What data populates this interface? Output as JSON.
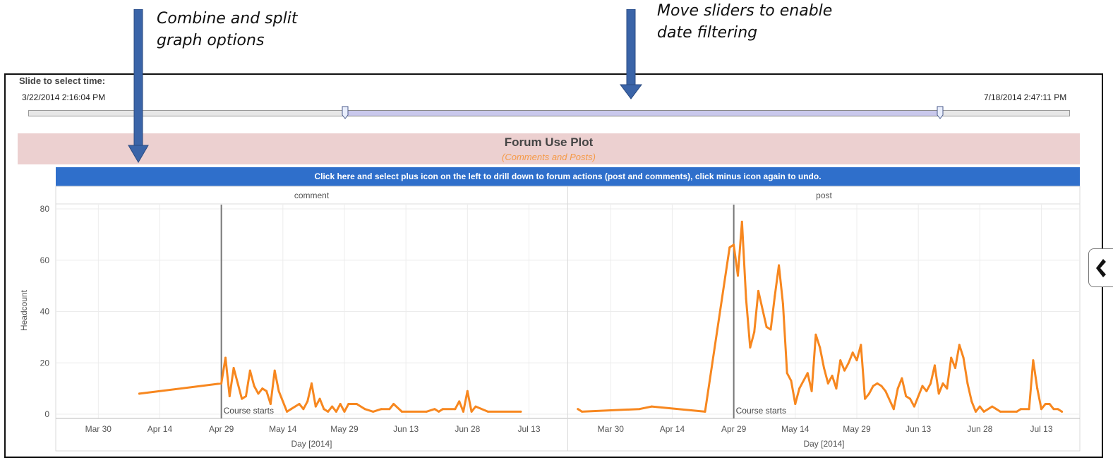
{
  "callouts": {
    "left": [
      "Combine and split",
      "graph options"
    ],
    "right": [
      "Move sliders to enable",
      "date filtering"
    ]
  },
  "slider": {
    "label": "Slide to select time:",
    "start_date": "3/22/2014 2:16:04 PM",
    "end_date": "7/18/2014 2:47:11 PM",
    "selected_range_fraction": [
      0.304,
      0.875
    ],
    "colors": {
      "track": "#e7e7e7",
      "selected": "#c9c8ec"
    }
  },
  "plot_header": {
    "title": "Forum Use Plot",
    "subtitle": "(Comments and Posts)"
  },
  "drill_bar": {
    "text": "Click here and select plus icon on the left  to drill down to forum actions (post and comments), click minus icon again to undo."
  },
  "colors": {
    "line": "#f7871f",
    "header_band": "#ecd0d0",
    "drill_bar": "#2f6fcb",
    "callout_arrow": "#3a64a8"
  },
  "chart_data": {
    "type": "line",
    "ylabel": "Headcount",
    "xlabel": "Day [2014]",
    "ylim": [
      0,
      80
    ],
    "yticks": [
      0,
      20,
      40,
      60,
      80
    ],
    "x_range": [
      "2014-03-21",
      "2014-07-21"
    ],
    "xticks": [
      {
        "date": "2014-03-30",
        "label": "Mar 30"
      },
      {
        "date": "2014-04-14",
        "label": "Apr 14"
      },
      {
        "date": "2014-04-29",
        "label": "Apr 29"
      },
      {
        "date": "2014-05-14",
        "label": "May 14"
      },
      {
        "date": "2014-05-29",
        "label": "May 29"
      },
      {
        "date": "2014-06-13",
        "label": "Jun 13"
      },
      {
        "date": "2014-06-28",
        "label": "Jun 28"
      },
      {
        "date": "2014-07-13",
        "label": "Jul 13"
      }
    ],
    "grid": true,
    "reference_line": {
      "date": "2014-04-29",
      "label": "Course starts"
    },
    "panels": [
      {
        "name": "comment",
        "points": [
          [
            "2014-04-09",
            8
          ],
          [
            "2014-04-29",
            12
          ],
          [
            "2014-04-30",
            22
          ],
          [
            "2014-05-01",
            7
          ],
          [
            "2014-05-02",
            18
          ],
          [
            "2014-05-03",
            12
          ],
          [
            "2014-05-04",
            6
          ],
          [
            "2014-05-05",
            7
          ],
          [
            "2014-05-06",
            17
          ],
          [
            "2014-05-07",
            11
          ],
          [
            "2014-05-08",
            8
          ],
          [
            "2014-05-09",
            10
          ],
          [
            "2014-05-10",
            9
          ],
          [
            "2014-05-11",
            4
          ],
          [
            "2014-05-12",
            17
          ],
          [
            "2014-05-13",
            9
          ],
          [
            "2014-05-14",
            5
          ],
          [
            "2014-05-15",
            1
          ],
          [
            "2014-05-16",
            2
          ],
          [
            "2014-05-18",
            4
          ],
          [
            "2014-05-19",
            2
          ],
          [
            "2014-05-20",
            5
          ],
          [
            "2014-05-21",
            12
          ],
          [
            "2014-05-22",
            3
          ],
          [
            "2014-05-23",
            6
          ],
          [
            "2014-05-24",
            2
          ],
          [
            "2014-05-25",
            1
          ],
          [
            "2014-05-26",
            3
          ],
          [
            "2014-05-27",
            1
          ],
          [
            "2014-05-28",
            4
          ],
          [
            "2014-05-29",
            1
          ],
          [
            "2014-05-30",
            4
          ],
          [
            "2014-06-01",
            4
          ],
          [
            "2014-06-03",
            2
          ],
          [
            "2014-06-05",
            1
          ],
          [
            "2014-06-07",
            2
          ],
          [
            "2014-06-09",
            2
          ],
          [
            "2014-06-10",
            4
          ],
          [
            "2014-06-12",
            1
          ],
          [
            "2014-06-18",
            1
          ],
          [
            "2014-06-20",
            2
          ],
          [
            "2014-06-21",
            1
          ],
          [
            "2014-06-22",
            2
          ],
          [
            "2014-06-25",
            2
          ],
          [
            "2014-06-26",
            5
          ],
          [
            "2014-06-27",
            1
          ],
          [
            "2014-06-28",
            9
          ],
          [
            "2014-06-29",
            1
          ],
          [
            "2014-06-30",
            3
          ],
          [
            "2014-07-03",
            1
          ],
          [
            "2014-07-11",
            1
          ]
        ]
      },
      {
        "name": "post",
        "points": [
          [
            "2014-03-22",
            2
          ],
          [
            "2014-03-23",
            1
          ],
          [
            "2014-04-06",
            2
          ],
          [
            "2014-04-09",
            3
          ],
          [
            "2014-04-22",
            1
          ],
          [
            "2014-04-28",
            65
          ],
          [
            "2014-04-29",
            66
          ],
          [
            "2014-04-30",
            54
          ],
          [
            "2014-05-01",
            75
          ],
          [
            "2014-05-02",
            45
          ],
          [
            "2014-05-03",
            26
          ],
          [
            "2014-05-04",
            32
          ],
          [
            "2014-05-05",
            48
          ],
          [
            "2014-05-07",
            34
          ],
          [
            "2014-05-08",
            33
          ],
          [
            "2014-05-09",
            46
          ],
          [
            "2014-05-10",
            58
          ],
          [
            "2014-05-11",
            43
          ],
          [
            "2014-05-12",
            16
          ],
          [
            "2014-05-13",
            13
          ],
          [
            "2014-05-14",
            4
          ],
          [
            "2014-05-15",
            10
          ],
          [
            "2014-05-17",
            16
          ],
          [
            "2014-05-18",
            9
          ],
          [
            "2014-05-19",
            31
          ],
          [
            "2014-05-20",
            26
          ],
          [
            "2014-05-21",
            18
          ],
          [
            "2014-05-22",
            12
          ],
          [
            "2014-05-23",
            15
          ],
          [
            "2014-05-24",
            10
          ],
          [
            "2014-05-25",
            21
          ],
          [
            "2014-05-26",
            17
          ],
          [
            "2014-05-27",
            20
          ],
          [
            "2014-05-28",
            24
          ],
          [
            "2014-05-29",
            21
          ],
          [
            "2014-05-30",
            27
          ],
          [
            "2014-05-31",
            6
          ],
          [
            "2014-06-01",
            8
          ],
          [
            "2014-06-02",
            11
          ],
          [
            "2014-06-03",
            12
          ],
          [
            "2014-06-04",
            11
          ],
          [
            "2014-06-05",
            9
          ],
          [
            "2014-06-07",
            2
          ],
          [
            "2014-06-08",
            10
          ],
          [
            "2014-06-09",
            14
          ],
          [
            "2014-06-10",
            7
          ],
          [
            "2014-06-11",
            6
          ],
          [
            "2014-06-12",
            3
          ],
          [
            "2014-06-13",
            7
          ],
          [
            "2014-06-14",
            11
          ],
          [
            "2014-06-15",
            9
          ],
          [
            "2014-06-16",
            12
          ],
          [
            "2014-06-17",
            19
          ],
          [
            "2014-06-18",
            8
          ],
          [
            "2014-06-19",
            12
          ],
          [
            "2014-06-20",
            10
          ],
          [
            "2014-06-21",
            22
          ],
          [
            "2014-06-22",
            18
          ],
          [
            "2014-06-23",
            27
          ],
          [
            "2014-06-24",
            22
          ],
          [
            "2014-06-25",
            12
          ],
          [
            "2014-06-26",
            5
          ],
          [
            "2014-06-27",
            1
          ],
          [
            "2014-06-28",
            3
          ],
          [
            "2014-06-29",
            1
          ],
          [
            "2014-07-01",
            3
          ],
          [
            "2014-07-02",
            2
          ],
          [
            "2014-07-03",
            1
          ],
          [
            "2014-07-07",
            1
          ],
          [
            "2014-07-08",
            2
          ],
          [
            "2014-07-10",
            2
          ],
          [
            "2014-07-11",
            21
          ],
          [
            "2014-07-12",
            10
          ],
          [
            "2014-07-13",
            2
          ],
          [
            "2014-07-14",
            4
          ],
          [
            "2014-07-15",
            4
          ],
          [
            "2014-07-16",
            2
          ],
          [
            "2014-07-17",
            2
          ],
          [
            "2014-07-18",
            1
          ]
        ]
      }
    ]
  }
}
